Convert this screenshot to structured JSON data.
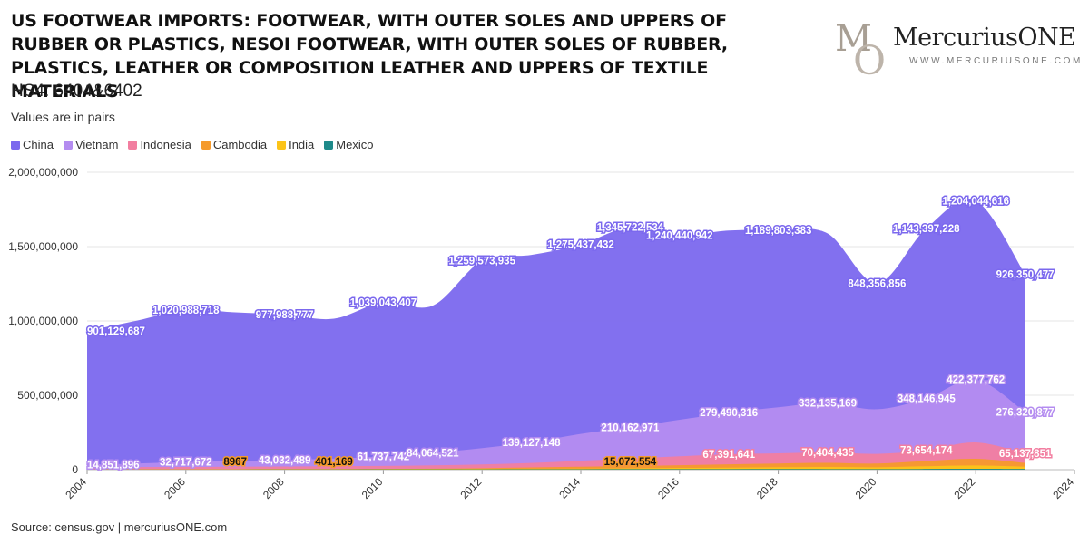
{
  "header": {
    "title": "US FOOTWEAR IMPORTS: FOOTWEAR, WITH OUTER SOLES AND UPPERS OF RUBBER OR PLASTICS, NESOI FOOTWEAR, WITH OUTER SOLES OF RUBBER, PLASTICS, LEATHER OR COMPOSITION LEATHER AND UPPERS OF TEXTILE MATERIALS",
    "subtitle": "HS4: 6404&6402",
    "note": "Values are in pairs"
  },
  "logo": {
    "mark_m": "M",
    "mark_o": "O",
    "name": "MercuriusONE",
    "url": "WWW.MERCURIUSONE.COM"
  },
  "footer": {
    "source": "Source: census.gov | mercuriusONE.com"
  },
  "colors": {
    "China": "#7b68ee",
    "Vietnam": "#b48cf0",
    "Indonesia": "#f27ea0",
    "Cambodia": "#f59a2b",
    "India": "#fcc419",
    "Mexico": "#1e8a8a",
    "grid": "#e6e6e6"
  },
  "chart_data": {
    "type": "area",
    "stacked": true,
    "x": [
      2004,
      2005,
      2006,
      2007,
      2008,
      2009,
      2010,
      2011,
      2012,
      2013,
      2014,
      2015,
      2016,
      2017,
      2018,
      2019,
      2020,
      2021,
      2022,
      2023
    ],
    "xticks": [
      "2004",
      "2006",
      "2008",
      "2010",
      "2012",
      "2014",
      "2016",
      "2018",
      "2020",
      "2022",
      "2024"
    ],
    "xlim": [
      2004,
      2024
    ],
    "ylim": [
      0,
      2000000000
    ],
    "yticks": [
      "0",
      "500,000,000",
      "1,000,000,000",
      "1,500,000,000",
      "2,000,000,000"
    ],
    "grid": true,
    "legend_position": "top-left",
    "series": [
      {
        "name": "Mexico",
        "values": [
          1000000,
          1000000,
          1000000,
          1000000,
          1500000,
          1500000,
          2000000,
          2000000,
          2500000,
          3000000,
          3000000,
          3500000,
          4000000,
          4000000,
          4500000,
          4000000,
          4000000,
          5000000,
          6000000,
          5000000
        ]
      },
      {
        "name": "India",
        "values": [
          1500000,
          1500000,
          1500000,
          2000000,
          2000000,
          2000000,
          2500000,
          3000000,
          3500000,
          4000000,
          5000000,
          6000000,
          8000000,
          10000000,
          12000000,
          14000000,
          12000000,
          18000000,
          22000000,
          15000000
        ]
      },
      {
        "name": "Cambodia",
        "values": [
          0,
          0,
          0,
          8967,
          100000,
          401169,
          1000000,
          2000000,
          4000000,
          8000000,
          12000000,
          15072554,
          18000000,
          22000000,
          25000000,
          28000000,
          25000000,
          35000000,
          45000000,
          25000000
        ]
      },
      {
        "name": "Indonesia",
        "values": [
          14851896,
          15000000,
          16000000,
          17000000,
          18000000,
          19000000,
          20000000,
          22000000,
          25000000,
          30000000,
          40000000,
          50000000,
          60000000,
          67391641,
          68000000,
          70404435,
          65000000,
          73654174,
          110000000,
          65137851
        ]
      },
      {
        "name": "Vietnam",
        "values": [
          14851896,
          24000000,
          32717672,
          38000000,
          43032489,
          52000000,
          61737742,
          84064521,
          110000000,
          139127148,
          180000000,
          210162971,
          245000000,
          279490316,
          310000000,
          332135169,
          300000000,
          348146945,
          422377762,
          276320877
        ]
      },
      {
        "name": "China",
        "values": [
          901129687,
          960000000,
          1020988718,
          1000000000,
          977988777,
          940000000,
          1039043407,
          990000000,
          1259573935,
          1260000000,
          1275437432,
          1345722534,
          1240440942,
          1225000000,
          1189803383,
          1140000000,
          848356856,
          1143397228,
          1204044616,
          926350477
        ]
      }
    ],
    "data_labels": [
      {
        "series": "China",
        "x": 2004,
        "y_base": 0,
        "value": 901129687,
        "text": "901,129,687"
      },
      {
        "series": "China",
        "x": 2006,
        "value": 1020988718,
        "text": "1,020,988,718"
      },
      {
        "series": "China",
        "x": 2008,
        "value": 977988777,
        "text": "977,988,777"
      },
      {
        "series": "China",
        "x": 2010,
        "value": 1039043407,
        "text": "1,039,043,407"
      },
      {
        "series": "China",
        "x": 2012,
        "value": 1259573935,
        "text": "1,259,573,935"
      },
      {
        "series": "China",
        "x": 2014,
        "value": 1275437432,
        "text": "1,275,437,432"
      },
      {
        "series": "China",
        "x": 2015,
        "value": 1345722534,
        "text": "1,345,722,534"
      },
      {
        "series": "China",
        "x": 2016,
        "value": 1240440942,
        "text": "1,240,440,942"
      },
      {
        "series": "China",
        "x": 2018,
        "value": 1189803383,
        "text": "1,189,803,383"
      },
      {
        "series": "China",
        "x": 2020,
        "value": 848356856,
        "text": "848,356,856"
      },
      {
        "series": "China",
        "x": 2021,
        "value": 1143397228,
        "text": "1,143,397,228"
      },
      {
        "series": "China",
        "x": 2022,
        "value": 1204044616,
        "text": "1,204,044,616"
      },
      {
        "series": "China",
        "x": 2023,
        "value": 926350477,
        "text": "926,350,477"
      },
      {
        "series": "Vietnam",
        "x": 2004,
        "value": 14851896,
        "text": "14,851,896"
      },
      {
        "series": "Vietnam",
        "x": 2006,
        "value": 32717672,
        "text": "32,717,672"
      },
      {
        "series": "Vietnam",
        "x": 2008,
        "value": 43032489,
        "text": "43,032,489"
      },
      {
        "series": "Vietnam",
        "x": 2010,
        "value": 61737742,
        "text": "61,737,742"
      },
      {
        "series": "Vietnam",
        "x": 2011,
        "value": 84064521,
        "text": "84,064,521"
      },
      {
        "series": "Vietnam",
        "x": 2013,
        "value": 139127148,
        "text": "139,127,148"
      },
      {
        "series": "Vietnam",
        "x": 2015,
        "value": 210162971,
        "text": "210,162,971"
      },
      {
        "series": "Vietnam",
        "x": 2017,
        "value": 279490316,
        "text": "279,490,316"
      },
      {
        "series": "Vietnam",
        "x": 2019,
        "value": 332135169,
        "text": "332,135,169"
      },
      {
        "series": "Vietnam",
        "x": 2021,
        "value": 348146945,
        "text": "348,146,945"
      },
      {
        "series": "Vietnam",
        "x": 2022,
        "value": 422377762,
        "text": "422,377,762"
      },
      {
        "series": "Vietnam",
        "x": 2023,
        "value": 276320877,
        "text": "276,320,877"
      },
      {
        "series": "Indonesia",
        "x": 2017,
        "value": 67391641,
        "text": "67,391,641"
      },
      {
        "series": "Indonesia",
        "x": 2019,
        "value": 70404435,
        "text": "70,404,435"
      },
      {
        "series": "Indonesia",
        "x": 2021,
        "value": 73654174,
        "text": "73,654,174"
      },
      {
        "series": "Indonesia",
        "x": 2023,
        "value": 65137851,
        "text": "65,137,851"
      },
      {
        "series": "Cambodia",
        "x": 2007,
        "value": 8967,
        "text": "8967"
      },
      {
        "series": "Cambodia",
        "x": 2009,
        "value": 401169,
        "text": "401,169"
      },
      {
        "series": "Cambodia",
        "x": 2015,
        "value": 15072554,
        "text": "15,072,554"
      }
    ]
  }
}
